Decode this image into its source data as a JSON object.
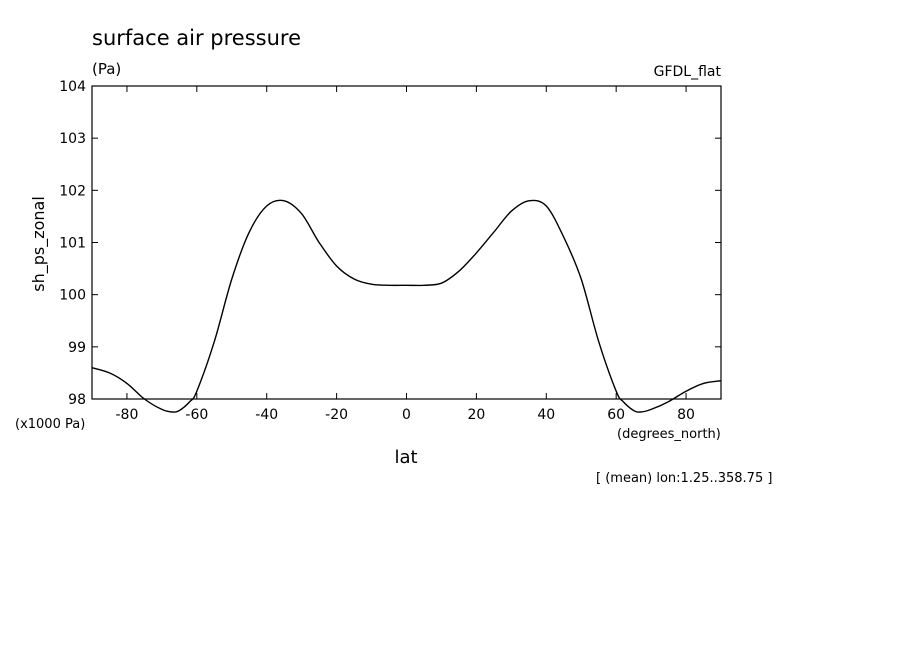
{
  "chart_data": {
    "type": "line",
    "title": "surface air pressure",
    "units": "(Pa)",
    "source": "GFDL_flat",
    "ylabel": "sh_ps_zonal",
    "xlabel": "lat",
    "y_scale_note": "(x1000 Pa)",
    "x_units": "(degrees_north)",
    "subset_note": "[ (mean) lon:1.25..358.75 ]",
    "xlim": [
      -90,
      90
    ],
    "ylim": [
      98,
      104
    ],
    "x_ticks": [
      -80,
      -60,
      -40,
      -20,
      0,
      20,
      40,
      60,
      80
    ],
    "y_ticks": [
      98,
      99,
      100,
      101,
      102,
      103,
      104
    ],
    "x_tick_labels": [
      "-80",
      "-60",
      "-40",
      "-20",
      "0",
      "20",
      "40",
      "60",
      "80"
    ],
    "y_tick_labels": [
      "98",
      "99",
      "100",
      "101",
      "102",
      "103",
      "104"
    ],
    "grid": false,
    "series": [
      {
        "x": [
          -90,
          -85,
          -80,
          -75,
          -70,
          -67,
          -65,
          -62,
          -60,
          -55,
          -50,
          -45,
          -40,
          -35,
          -30,
          -25,
          -20,
          -15,
          -10,
          -5,
          0,
          5,
          10,
          15,
          20,
          25,
          30,
          35,
          40,
          45,
          50,
          55,
          60,
          62,
          65,
          67,
          70,
          75,
          80,
          85,
          90
        ],
        "values": [
          98.6,
          98.5,
          98.3,
          98.0,
          97.8,
          97.75,
          97.78,
          97.95,
          98.15,
          99.1,
          100.3,
          101.2,
          101.7,
          101.8,
          101.55,
          101.0,
          100.55,
          100.3,
          100.2,
          100.18,
          100.18,
          100.18,
          100.22,
          100.45,
          100.8,
          101.2,
          101.6,
          101.8,
          101.7,
          101.1,
          100.3,
          99.1,
          98.15,
          97.95,
          97.78,
          97.75,
          97.8,
          97.95,
          98.15,
          98.3,
          98.35
        ]
      }
    ]
  }
}
